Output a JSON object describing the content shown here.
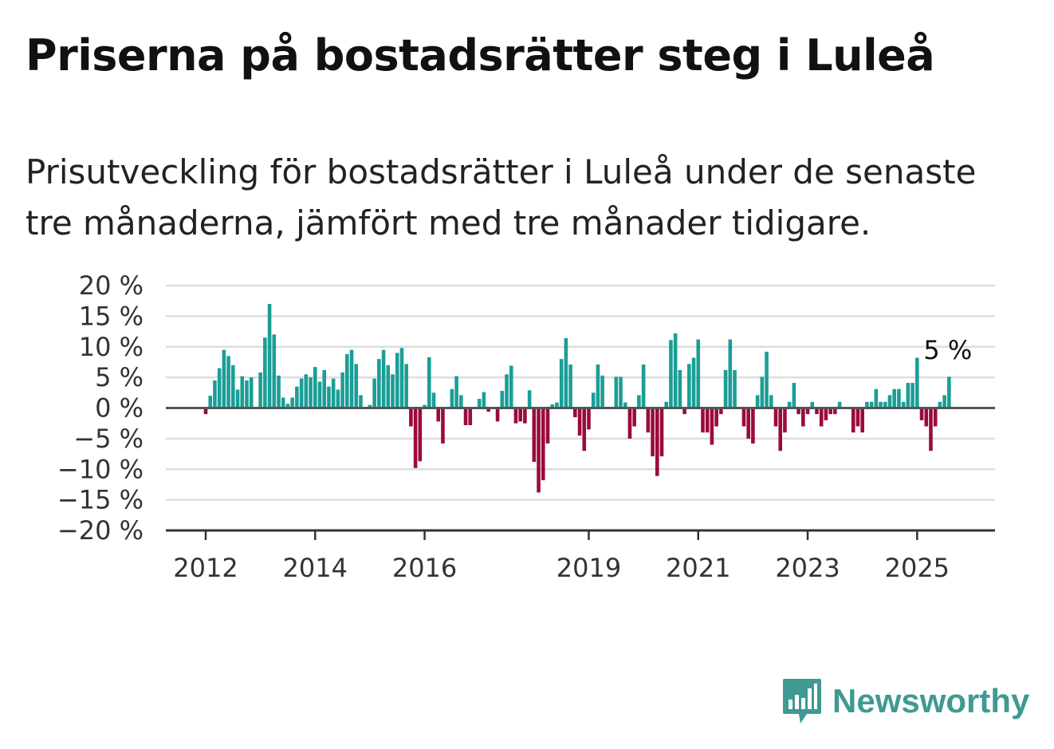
{
  "title": "Priserna på bostadsrätter steg i Luleå",
  "subtitle": "Prisutveckling för bostadsrätter i Luleå under de senaste tre månaderna, jämfört med tre månader tidigare.",
  "brand": {
    "name": "Newsworthy",
    "icon": "newsworthy-logo-icon",
    "color": "#3f9a92"
  },
  "chart_data": {
    "type": "bar",
    "title": "Priserna på bostadsrätter steg i Luleå",
    "subtitle": "Prisutveckling för bostadsrätter i Luleå under de senaste tre månaderna, jämfört med tre månader tidigare.",
    "xlabel": "",
    "ylabel": "",
    "start": "2012-01",
    "frequency": "monthly",
    "ylim": [
      -20,
      20
    ],
    "y_ticks": [
      20,
      15,
      10,
      5,
      0,
      -5,
      -10,
      -15,
      -20
    ],
    "y_tick_labels": [
      "20 %",
      "15 %",
      "10 %",
      "5 %",
      "0 %",
      "−5 %",
      "−10 %",
      "−15 %",
      "−20 %"
    ],
    "x_tick_labels": [
      "2012",
      "2014",
      "2016",
      "2019",
      "2021",
      "2023",
      "2025"
    ],
    "grid": true,
    "positive_color": "#1a9e96",
    "negative_color": "#9b0a3d",
    "annotation": {
      "label": "5 %",
      "value": 5
    },
    "values": [
      -1,
      2,
      4.5,
      6.5,
      9.5,
      8.5,
      7,
      3,
      5.2,
      4.5,
      5,
      0,
      5.8,
      11.5,
      17,
      12,
      5.3,
      1.7,
      0.7,
      1.7,
      3.5,
      4.8,
      5.5,
      5,
      6.7,
      4.3,
      6.2,
      3.5,
      4.8,
      3,
      5.8,
      8.8,
      9.5,
      7.2,
      2.1,
      0,
      0.5,
      4.8,
      8,
      9.5,
      7,
      5.5,
      9,
      9.8,
      7.2,
      -3,
      -9.8,
      -8.7,
      0.5,
      8.3,
      2.5,
      -2.2,
      -5.8,
      0,
      3.1,
      5.2,
      2.1,
      -2.8,
      -2.8,
      0,
      1.5,
      2.6,
      -0.6,
      0,
      -2.2,
      2.8,
      5.5,
      6.9,
      -2.5,
      -2.2,
      -2.5,
      2.9,
      -8.8,
      -13.8,
      -11.8,
      -5.8,
      0.6,
      0.9,
      8,
      11.4,
      7.1,
      -1.5,
      -4.5,
      -7,
      -3.5,
      2.5,
      7.1,
      5.3,
      0,
      0,
      5.1,
      5.1,
      0.9,
      -5,
      -3,
      2.1,
      7.1,
      -4,
      -7.9,
      -11.1,
      -7.9,
      1,
      11.1,
      12.2,
      6.2,
      -1,
      7.2,
      8.2,
      11.2,
      -4,
      -4,
      -6,
      -3,
      -1,
      6.2,
      11.2,
      6.2,
      0,
      -3,
      -5,
      -5.8,
      2.1,
      5.1,
      9.2,
      2.1,
      -3,
      -7,
      -4,
      1,
      4.1,
      -1,
      -3,
      -1,
      1,
      -1,
      -3,
      -2,
      -1,
      -1,
      1,
      0,
      0,
      -4,
      -3,
      -4,
      1,
      1,
      3.1,
      1,
      1,
      2.1,
      3.1,
      3.1,
      1,
      4.1,
      4.1,
      8.2,
      -2,
      -3,
      -7,
      -3,
      1,
      2.1,
      5.1
    ]
  }
}
